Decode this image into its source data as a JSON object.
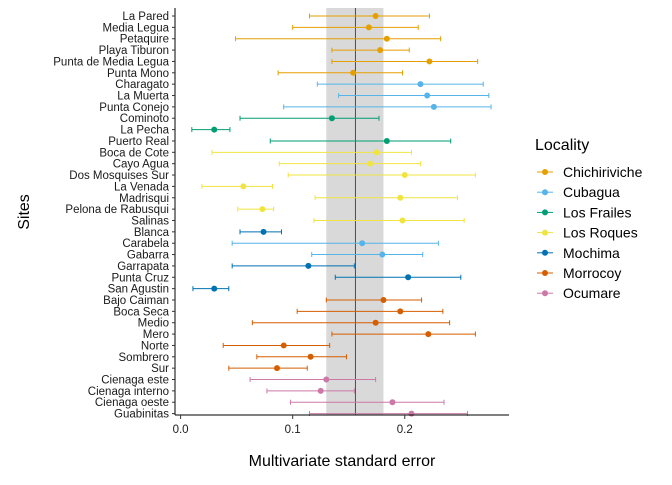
{
  "chart_data": {
    "type": "scatter",
    "orientation": "horizontal-dot-errorbar",
    "xlabel": "Multivariate standard error",
    "ylabel": "Sites",
    "xlim": [
      -0.005,
      0.293
    ],
    "xticks": [
      0.0,
      0.1,
      0.2
    ],
    "xtick_labels": [
      "0.0",
      "0.1",
      "0.2"
    ],
    "grid": false,
    "legend": {
      "title": "Locality",
      "placement": "right"
    },
    "reference": {
      "line": 0.156,
      "band": [
        0.13,
        0.181
      ]
    },
    "series": [
      {
        "name": "Chichiriviche",
        "color": "#E69F00"
      },
      {
        "name": "Cubagua",
        "color": "#56B4E9"
      },
      {
        "name": "Los Frailes",
        "color": "#009E73"
      },
      {
        "name": "Los Roques",
        "color": "#F0E442"
      },
      {
        "name": "Mochima",
        "color": "#0072B2"
      },
      {
        "name": "Morrocoy",
        "color": "#D55E00"
      },
      {
        "name": "Ocumare",
        "color": "#CC79A7"
      }
    ],
    "points": [
      {
        "site": "La Pared",
        "locality": "Chichiriviche",
        "x": 0.174,
        "lo": 0.115,
        "hi": 0.222
      },
      {
        "site": "Media Legua",
        "locality": "Chichiriviche",
        "x": 0.168,
        "lo": 0.1,
        "hi": 0.212
      },
      {
        "site": "Petaquire",
        "locality": "Chichiriviche",
        "x": 0.184,
        "lo": 0.049,
        "hi": 0.232
      },
      {
        "site": "Playa Tiburon",
        "locality": "Chichiriviche",
        "x": 0.178,
        "lo": 0.135,
        "hi": 0.204
      },
      {
        "site": "Punta de Media Legua",
        "locality": "Chichiriviche",
        "x": 0.222,
        "lo": 0.135,
        "hi": 0.265
      },
      {
        "site": "Punta Mono",
        "locality": "Chichiriviche",
        "x": 0.154,
        "lo": 0.087,
        "hi": 0.198
      },
      {
        "site": "Charagato",
        "locality": "Cubagua",
        "x": 0.214,
        "lo": 0.122,
        "hi": 0.27
      },
      {
        "site": "La Muerta",
        "locality": "Cubagua",
        "x": 0.22,
        "lo": 0.141,
        "hi": 0.275
      },
      {
        "site": "Punta Conejo",
        "locality": "Cubagua",
        "x": 0.226,
        "lo": 0.092,
        "hi": 0.277
      },
      {
        "site": "Cominoto",
        "locality": "Los Frailes",
        "x": 0.135,
        "lo": 0.053,
        "hi": 0.177
      },
      {
        "site": "La Pecha",
        "locality": "Los Frailes",
        "x": 0.03,
        "lo": 0.01,
        "hi": 0.044
      },
      {
        "site": "Puerto Real",
        "locality": "Los Frailes",
        "x": 0.184,
        "lo": 0.08,
        "hi": 0.241
      },
      {
        "site": "Boca de Cote",
        "locality": "Los Roques",
        "x": 0.175,
        "lo": 0.028,
        "hi": 0.206
      },
      {
        "site": "Cayo Agua",
        "locality": "Los Roques",
        "x": 0.169,
        "lo": 0.088,
        "hi": 0.214
      },
      {
        "site": "Dos Mosquises Sur",
        "locality": "Los Roques",
        "x": 0.2,
        "lo": 0.096,
        "hi": 0.263
      },
      {
        "site": "La Venada",
        "locality": "Los Roques",
        "x": 0.056,
        "lo": 0.019,
        "hi": 0.082
      },
      {
        "site": "Madrisqui",
        "locality": "Los Roques",
        "x": 0.196,
        "lo": 0.12,
        "hi": 0.247
      },
      {
        "site": "Pelona de Rabusqui",
        "locality": "Los Roques",
        "x": 0.073,
        "lo": 0.051,
        "hi": 0.083
      },
      {
        "site": "Salinas",
        "locality": "Los Roques",
        "x": 0.198,
        "lo": 0.119,
        "hi": 0.253
      },
      {
        "site": "Blanca",
        "locality": "Mochima",
        "x": 0.074,
        "lo": 0.053,
        "hi": 0.09
      },
      {
        "site": "Carabela",
        "locality": "Cubagua",
        "x": 0.162,
        "lo": 0.046,
        "hi": 0.23
      },
      {
        "site": "Gabarra",
        "locality": "Cubagua",
        "x": 0.18,
        "lo": 0.117,
        "hi": 0.216
      },
      {
        "site": "Garrapata",
        "locality": "Mochima",
        "x": 0.114,
        "lo": 0.046,
        "hi": 0.155
      },
      {
        "site": "Punta Cruz",
        "locality": "Mochima",
        "x": 0.203,
        "lo": 0.138,
        "hi": 0.25
      },
      {
        "site": "San Agustin",
        "locality": "Mochima",
        "x": 0.03,
        "lo": 0.011,
        "hi": 0.043
      },
      {
        "site": "Bajo Caiman",
        "locality": "Morrocoy",
        "x": 0.181,
        "lo": 0.13,
        "hi": 0.215
      },
      {
        "site": "Boca Seca",
        "locality": "Morrocoy",
        "x": 0.196,
        "lo": 0.104,
        "hi": 0.234
      },
      {
        "site": "Medio",
        "locality": "Morrocoy",
        "x": 0.174,
        "lo": 0.064,
        "hi": 0.24
      },
      {
        "site": "Mero",
        "locality": "Morrocoy",
        "x": 0.221,
        "lo": 0.135,
        "hi": 0.263
      },
      {
        "site": "Norte",
        "locality": "Morrocoy",
        "x": 0.092,
        "lo": 0.038,
        "hi": 0.133
      },
      {
        "site": "Sombrero",
        "locality": "Morrocoy",
        "x": 0.116,
        "lo": 0.068,
        "hi": 0.148
      },
      {
        "site": "Sur",
        "locality": "Morrocoy",
        "x": 0.086,
        "lo": 0.043,
        "hi": 0.113
      },
      {
        "site": "Cienaga este",
        "locality": "Ocumare",
        "x": 0.13,
        "lo": 0.062,
        "hi": 0.174
      },
      {
        "site": "Cienaga interno",
        "locality": "Ocumare",
        "x": 0.125,
        "lo": 0.077,
        "hi": 0.155
      },
      {
        "site": "Cienaga oeste",
        "locality": "Ocumare",
        "x": 0.189,
        "lo": 0.098,
        "hi": 0.235
      },
      {
        "site": "Guabinitas",
        "locality": "Ocumare",
        "x": 0.206,
        "lo": 0.115,
        "hi": 0.256
      }
    ]
  }
}
